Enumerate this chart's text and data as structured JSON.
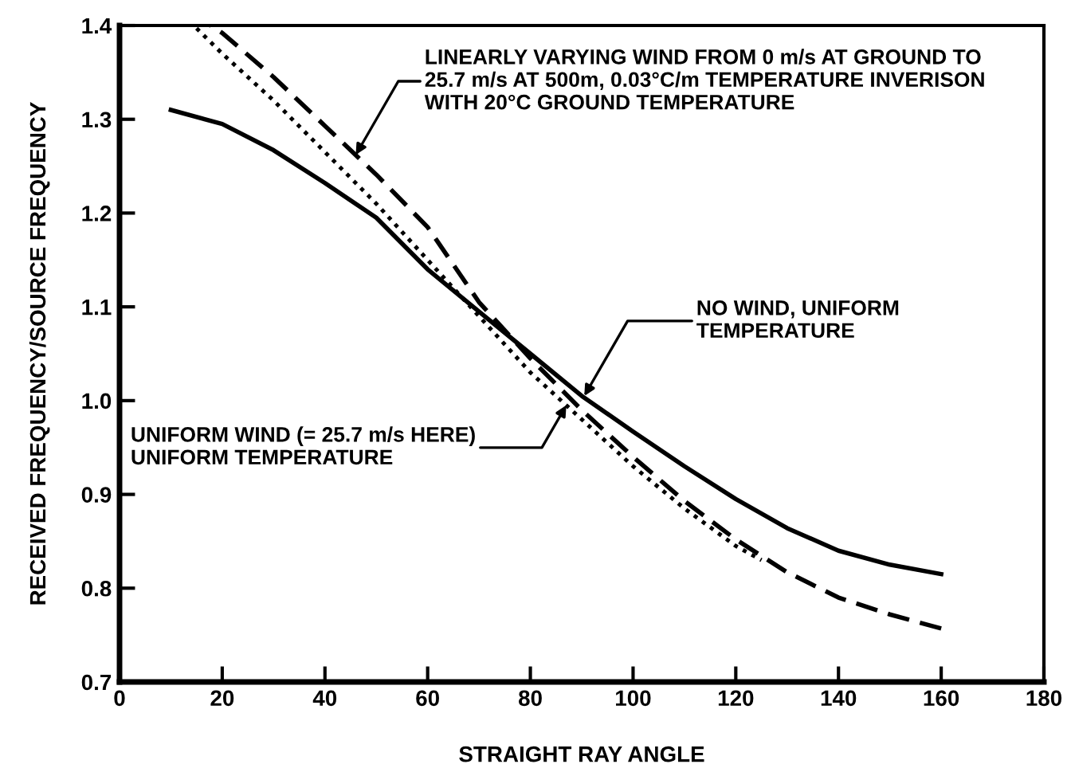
{
  "chart_data": {
    "type": "line",
    "xlabel": "STRAIGHT RAY ANGLE",
    "ylabel": "RECEIVED FREQUENCY/SOURCE FREQUENCY",
    "xlim": [
      0,
      180
    ],
    "xticks": [
      0,
      20,
      40,
      60,
      80,
      100,
      120,
      140,
      160,
      180
    ],
    "ylim": [
      0.7,
      1.4
    ],
    "yticks": [
      {
        "value": 0.7,
        "label": "0.7"
      },
      {
        "value": 0.8,
        "label": "0.8"
      },
      {
        "value": 0.9,
        "label": "0.9"
      },
      {
        "value": 1.0,
        "label": "1.0"
      },
      {
        "value": 1.1,
        "label": "1.1"
      },
      {
        "value": 1.2,
        "label": "1.2"
      },
      {
        "value": 1.3,
        "label": "1.3"
      },
      {
        "value": 1.4,
        "label": "1.4"
      }
    ],
    "grid": false,
    "legend": false,
    "marker": "none",
    "series": [
      {
        "color": "#000000",
        "line_style": "solid",
        "x": [
          10,
          20,
          30,
          40,
          50,
          60,
          70,
          80,
          90,
          100,
          110,
          120,
          130,
          140,
          150,
          160
        ],
        "values": [
          1.31,
          1.295,
          1.267,
          1.232,
          1.195,
          1.14,
          1.095,
          1.05,
          1.005,
          0.967,
          0.93,
          0.895,
          0.864,
          0.84,
          0.825,
          0.815
        ]
      },
      {
        "color": "#000000",
        "line_style": "dashed",
        "x": [
          17.7,
          20,
          30,
          40,
          50,
          60,
          70,
          80,
          90,
          100,
          110,
          120,
          130,
          140,
          150,
          160
        ],
        "values": [
          1.4,
          1.392,
          1.345,
          1.293,
          1.241,
          1.185,
          1.105,
          1.045,
          0.99,
          0.94,
          0.893,
          0.852,
          0.817,
          0.79,
          0.772,
          0.757
        ]
      },
      {
        "color": "#000000",
        "line_style": "dotted",
        "x": [
          15,
          20,
          30,
          40,
          50,
          60,
          70,
          80,
          90,
          100,
          110,
          120,
          125
        ],
        "values": [
          1.397,
          1.37,
          1.32,
          1.265,
          1.21,
          1.15,
          1.09,
          1.03,
          0.98,
          0.93,
          0.885,
          0.845,
          0.83
        ]
      }
    ],
    "annotations": [
      {
        "text": "LINEARLY VARYING WIND FROM 0 m/s AT GROUND TO\n25.7 m/s AT 500m, 0.03°C/m TEMPERATURE INVERISON\nWITH 20°C GROUND TEMPERATURE",
        "x": 46,
        "y": 1.262
      },
      {
        "text": "NO WIND, UNIFORM\nTEMPERATURE",
        "x": 90.5,
        "y": 1.005
      },
      {
        "text": "UNIFORM WIND (= 25.7 m/s HERE)\nUNIFORM TEMPERATURE",
        "x": 87,
        "y": 0.995
      }
    ]
  }
}
